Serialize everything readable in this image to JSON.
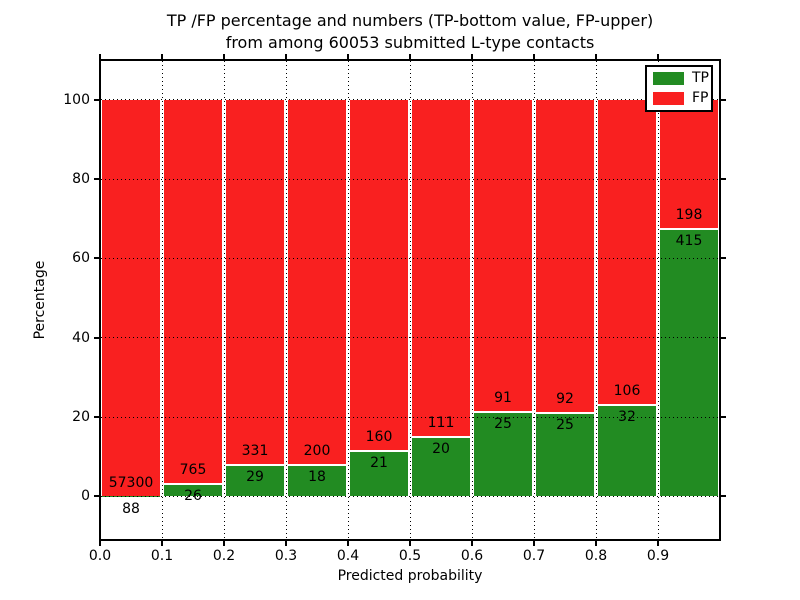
{
  "figure": {
    "title_line1": "TP /FP percentage and numbers (TP-bottom value, FP-upper)",
    "title_line2": "from among 60053 submitted L-type contacts",
    "xlabel": "Predicted probability",
    "ylabel": "Percentage"
  },
  "legend": {
    "position": "upper right",
    "entries": [
      {
        "label": "TP",
        "color": "#228b22"
      },
      {
        "label": "FP",
        "color": "#f92020"
      }
    ]
  },
  "chart_data": {
    "type": "bar",
    "stacked": true,
    "normalized": "each bar totals 100%",
    "title": "TP /FP percentage and numbers (TP-bottom value, FP-upper) from among 60053 submitted L-type contacts",
    "xlabel": "Predicted probability",
    "ylabel": "Percentage",
    "total_submitted_contacts": 60053,
    "bin_edges": [
      0.0,
      0.1,
      0.2,
      0.3,
      0.4,
      0.5,
      0.6,
      0.7,
      0.8,
      0.9,
      1.0
    ],
    "categories": [
      "0.0-0.1",
      "0.1-0.2",
      "0.2-0.3",
      "0.3-0.4",
      "0.4-0.5",
      "0.5-0.6",
      "0.6-0.7",
      "0.7-0.8",
      "0.8-0.9",
      "0.9-1.0"
    ],
    "series": [
      {
        "name": "TP",
        "color": "#228b22",
        "counts": [
          88,
          26,
          29,
          18,
          21,
          20,
          25,
          25,
          32,
          415
        ],
        "percent": [
          0.15,
          3.29,
          8.06,
          8.26,
          11.6,
          15.27,
          21.55,
          21.37,
          23.19,
          67.7
        ]
      },
      {
        "name": "FP",
        "color": "#f92020",
        "counts": [
          57300,
          765,
          331,
          200,
          160,
          111,
          91,
          92,
          106,
          198
        ],
        "percent": [
          99.85,
          96.71,
          91.94,
          91.74,
          88.4,
          84.73,
          78.45,
          78.63,
          76.81,
          32.3
        ]
      }
    ],
    "x_ticks": [
      "0.0",
      "0.1",
      "0.2",
      "0.3",
      "0.4",
      "0.5",
      "0.6",
      "0.7",
      "0.8",
      "0.9"
    ],
    "y_ticks": [
      "0",
      "20",
      "40",
      "60",
      "80",
      "100"
    ],
    "y_tick_values": [
      0,
      20,
      40,
      60,
      80,
      100
    ],
    "xlim": [
      0.0,
      1.0
    ],
    "ylim": [
      -11,
      110
    ],
    "grid": "dotted black",
    "bar_gap_color": "#ffffff",
    "segment_separator_color": "#ffffff",
    "legend_position": "upper right"
  }
}
